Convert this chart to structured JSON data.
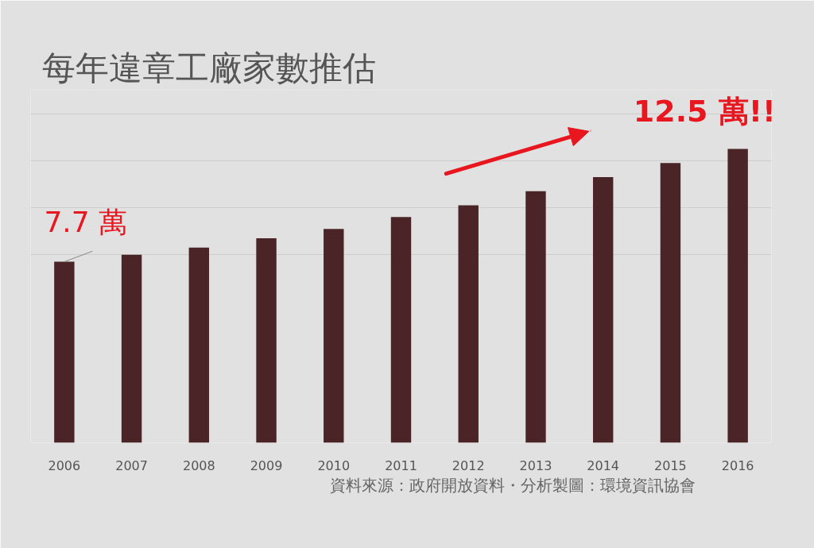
{
  "chart_data": {
    "type": "bar",
    "title": "每年違章工廠家數推估",
    "categories": [
      "2006",
      "2007",
      "2008",
      "2009",
      "2010",
      "2011",
      "2012",
      "2013",
      "2014",
      "2015",
      "2016"
    ],
    "values": [
      7.7,
      8.0,
      8.3,
      8.7,
      9.1,
      9.6,
      10.1,
      10.7,
      11.3,
      11.9,
      12.5
    ],
    "color": "#4b2427",
    "value_labels": [
      "7.7 萬",
      null,
      null,
      null,
      null,
      null,
      null,
      null,
      null,
      null,
      "12.5 萬!!"
    ],
    "ylim": [
      0,
      15
    ],
    "yticks": [
      {
        "value": 8,
        "label": null
      },
      {
        "value": 10,
        "label": null
      },
      {
        "value": 12,
        "label": null
      },
      {
        "value": 14,
        "label": null
      }
    ],
    "grid": "y",
    "tick_labels": "x",
    "annotations": [
      "資料來源：政府開放資料・分析製圖：環境資訊協會"
    ]
  }
}
